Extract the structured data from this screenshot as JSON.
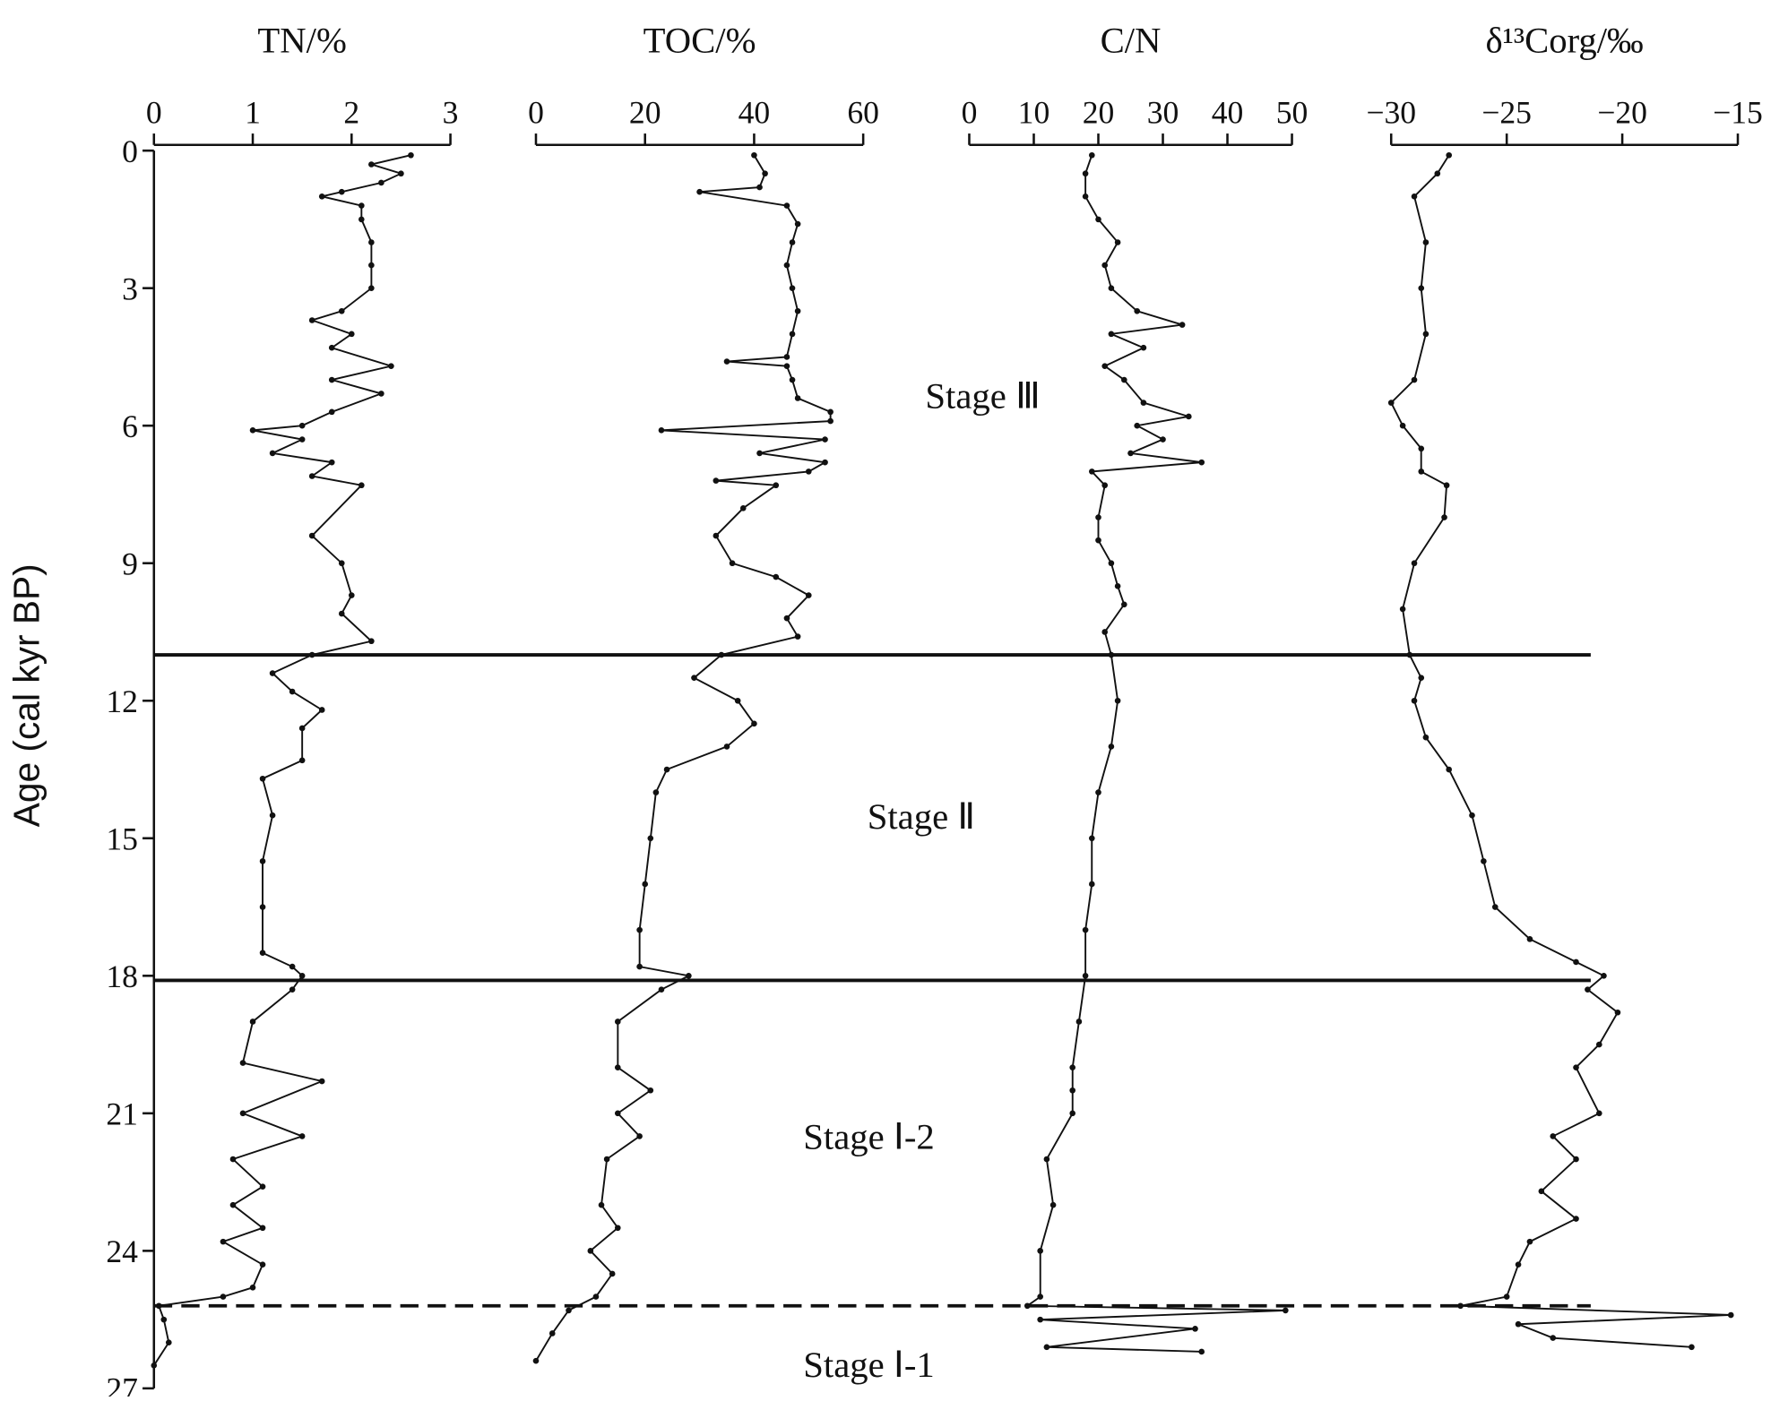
{
  "chart_data": [
    {
      "type": "line",
      "title": "TN/%",
      "xlim": [
        0,
        3
      ],
      "xticks": [
        0,
        1,
        2,
        3
      ],
      "ylim": [
        0,
        27
      ],
      "yticks": [
        0,
        3,
        6,
        9,
        12,
        15,
        18,
        21,
        24,
        27
      ],
      "ylabel": "Age (cal kyr BP)",
      "y_inverted": true,
      "boundaries": [
        {
          "value": 11,
          "style": "solid"
        },
        {
          "value": 18.1,
          "style": "solid"
        },
        {
          "value": 25.2,
          "style": "dashed"
        }
      ],
      "annotations": [
        "Stage Ⅲ",
        "Stage Ⅱ",
        "Stage Ⅰ-2",
        "Stage Ⅰ-1"
      ],
      "color": "#111111",
      "y": [
        0.1,
        0.3,
        0.5,
        0.7,
        0.9,
        1.0,
        1.2,
        1.5,
        2.0,
        2.5,
        3.0,
        3.5,
        3.7,
        4.0,
        4.3,
        4.7,
        5.0,
        5.3,
        5.7,
        6.0,
        6.1,
        6.3,
        6.6,
        6.8,
        7.1,
        7.3,
        8.4,
        9.0,
        9.7,
        10.1,
        10.7,
        11.0,
        11.4,
        11.8,
        12.2,
        12.6,
        13.3,
        13.7,
        14.5,
        15.5,
        16.5,
        17.5,
        17.8,
        18.0,
        18.3,
        19.0,
        19.9,
        20.3,
        21.0,
        21.5,
        22.0,
        22.6,
        23.0,
        23.5,
        23.8,
        24.3,
        24.8,
        25.0,
        25.2,
        25.5,
        26.0,
        26.5
      ],
      "values": [
        2.6,
        2.2,
        2.5,
        2.3,
        1.9,
        1.7,
        2.1,
        2.1,
        2.2,
        2.2,
        2.2,
        1.9,
        1.6,
        2.0,
        1.8,
        2.4,
        1.8,
        2.3,
        1.8,
        1.5,
        1.0,
        1.5,
        1.2,
        1.8,
        1.6,
        2.1,
        1.6,
        1.9,
        2.0,
        1.9,
        2.2,
        1.6,
        1.2,
        1.4,
        1.7,
        1.5,
        1.5,
        1.1,
        1.2,
        1.1,
        1.1,
        1.1,
        1.4,
        1.5,
        1.4,
        1.0,
        0.9,
        1.7,
        0.9,
        1.5,
        0.8,
        1.1,
        0.8,
        1.1,
        0.7,
        1.1,
        1.0,
        0.7,
        0.05,
        0.1,
        0.15,
        0.0
      ]
    },
    {
      "type": "line",
      "title": "TOC/%",
      "xlim": [
        0,
        60
      ],
      "xticks": [
        0,
        20,
        40,
        60
      ],
      "color": "#111111",
      "y": [
        0.1,
        0.5,
        0.8,
        0.9,
        1.2,
        1.6,
        2.0,
        2.5,
        3.0,
        3.5,
        4.0,
        4.5,
        4.6,
        4.7,
        5.0,
        5.4,
        5.7,
        5.9,
        6.1,
        6.3,
        6.6,
        6.8,
        7.0,
        7.2,
        7.3,
        7.8,
        8.4,
        9.0,
        9.3,
        9.7,
        10.2,
        10.6,
        11.0,
        11.5,
        12.0,
        12.5,
        13.0,
        13.5,
        14.0,
        15.0,
        16.0,
        17.0,
        17.8,
        18.0,
        18.3,
        19.0,
        20.0,
        20.5,
        21.0,
        21.5,
        22.0,
        23.0,
        23.5,
        24.0,
        24.5,
        25.0,
        25.3,
        25.8,
        26.4
      ],
      "values": [
        40,
        42,
        41,
        30,
        46,
        48,
        47,
        46,
        47,
        48,
        47,
        46,
        35,
        46,
        47,
        48,
        54,
        54,
        23,
        53,
        41,
        53,
        50,
        33,
        44,
        38,
        33,
        36,
        44,
        50,
        46,
        48,
        34,
        29,
        37,
        40,
        35,
        24,
        22,
        21,
        20,
        19,
        19,
        28,
        23,
        15,
        15,
        21,
        15,
        19,
        13,
        12,
        15,
        10,
        14,
        11,
        6,
        3,
        0
      ]
    },
    {
      "type": "line",
      "title": "C/N",
      "xlim": [
        0,
        50
      ],
      "xticks": [
        0,
        10,
        20,
        30,
        40,
        50
      ],
      "color": "#111111",
      "y": [
        0.1,
        0.5,
        1.0,
        1.5,
        2.0,
        2.5,
        3.0,
        3.5,
        3.8,
        4.0,
        4.3,
        4.7,
        5.0,
        5.5,
        5.8,
        6.0,
        6.3,
        6.6,
        6.8,
        7.0,
        7.3,
        8.0,
        8.5,
        9.0,
        9.5,
        9.9,
        10.5,
        11.0,
        12.0,
        13.0,
        14.0,
        15.0,
        16.0,
        17.0,
        18.0,
        19.0,
        20.0,
        20.5,
        21.0,
        22.0,
        23.0,
        24.0,
        25.0,
        25.2,
        25.3,
        25.5,
        25.7,
        26.1,
        26.2
      ],
      "values": [
        19,
        18,
        18,
        20,
        23,
        21,
        22,
        26,
        33,
        22,
        27,
        21,
        24,
        27,
        34,
        26,
        30,
        25,
        36,
        19,
        21,
        20,
        20,
        22,
        23,
        24,
        21,
        22,
        23,
        22,
        20,
        19,
        19,
        18,
        18,
        17,
        16,
        16,
        16,
        12,
        13,
        11,
        11,
        9,
        49,
        11,
        35,
        12,
        36
      ]
    },
    {
      "type": "line",
      "title": "δ¹³Corg/‰",
      "xlim": [
        -30,
        -15
      ],
      "xticks": [
        {
          "value": -30,
          "label": "−30"
        },
        {
          "value": -25,
          "label": "−25"
        },
        {
          "value": -20,
          "label": "−20"
        },
        {
          "value": -15,
          "label": "−15"
        }
      ],
      "color": "#111111",
      "y": [
        0.1,
        0.5,
        1.0,
        2.0,
        3.0,
        4.0,
        5.0,
        5.5,
        6.0,
        6.5,
        7.0,
        7.3,
        8.0,
        9.0,
        10.0,
        11.0,
        11.5,
        12.0,
        12.8,
        13.5,
        14.5,
        15.5,
        16.5,
        17.2,
        17.7,
        18.0,
        18.3,
        18.8,
        19.5,
        20.0,
        21.0,
        21.5,
        22.0,
        22.7,
        23.3,
        23.8,
        24.3,
        25.0,
        25.2,
        25.4,
        25.6,
        25.9,
        26.1
      ],
      "values": [
        -27.5,
        -28,
        -29,
        -28.5,
        -28.7,
        -28.5,
        -29,
        -30,
        -29.5,
        -28.7,
        -28.7,
        -27.6,
        -27.7,
        -29,
        -29.5,
        -29.2,
        -28.7,
        -29,
        -28.5,
        -27.5,
        -26.5,
        -26,
        -25.5,
        -24,
        -22,
        -20.8,
        -21.5,
        -20.2,
        -21,
        -22,
        -21,
        -23,
        -22,
        -23.5,
        -22,
        -24,
        -24.5,
        -25,
        -27,
        -15.3,
        -24.5,
        -23,
        -17
      ]
    }
  ]
}
